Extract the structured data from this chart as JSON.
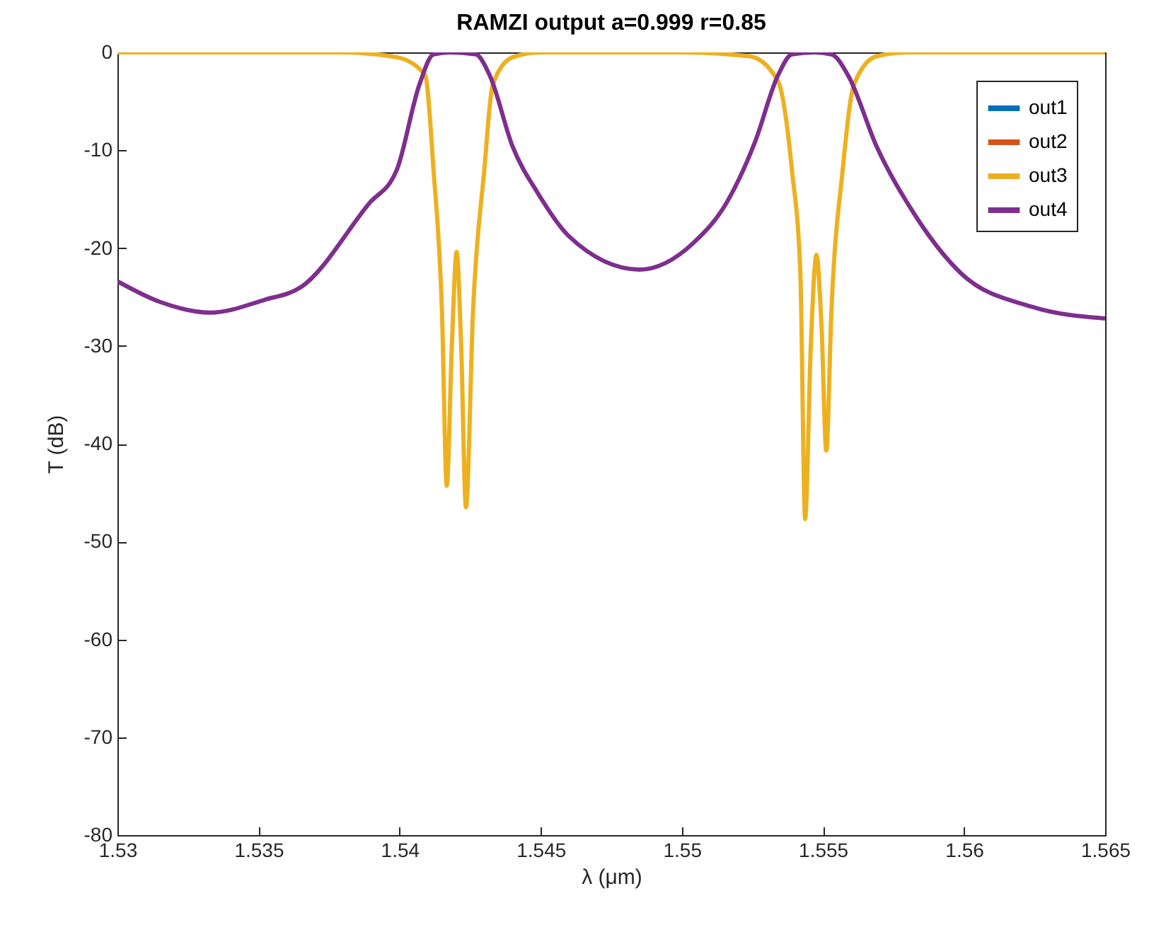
{
  "chart_data": {
    "type": "line",
    "title": "RAMZI output a=0.999 r=0.85",
    "xlabel": "λ (μm)",
    "ylabel": "T (dB)",
    "xlim": [
      1.53,
      1.565
    ],
    "xticks": [
      1.53,
      1.535,
      1.54,
      1.545,
      1.55,
      1.555,
      1.56,
      1.565
    ],
    "ylim": [
      -80,
      0
    ],
    "yticks": [
      -80,
      -70,
      -60,
      -50,
      -40,
      -30,
      -20,
      -10,
      0
    ],
    "grid": false,
    "legend": "top right",
    "line_style": "solid",
    "marker": "none",
    "series": [
      {
        "name": "out1",
        "color": "#0072bd"
      },
      {
        "name": "out2",
        "color": "#d95319"
      },
      {
        "name": "out3",
        "color": "#edb120",
        "x": [
          1.53,
          1.538,
          1.5399,
          1.5409,
          1.5412,
          1.5415,
          1.54167,
          1.54185,
          1.54202,
          1.54218,
          1.54235,
          1.5426,
          1.543,
          1.5433,
          1.544,
          1.545,
          1.55,
          1.5524,
          1.5534,
          1.5539,
          1.5542,
          1.55437,
          1.55457,
          1.55477,
          1.55495,
          1.55512,
          1.5553,
          1.5557,
          1.5561,
          1.5569,
          1.558,
          1.565
        ],
        "values": [
          0,
          0,
          -0.5,
          -2.3,
          -12,
          -26.5,
          -44.3,
          -30,
          -20.4,
          -30,
          -46.5,
          -26.5,
          -12,
          -3.3,
          -0.5,
          0,
          0,
          -0.4,
          -2.9,
          -12,
          -22.6,
          -47.7,
          -30,
          -20.7,
          -28,
          -40.7,
          -26.5,
          -12,
          -3.3,
          -0.4,
          0,
          0
        ]
      },
      {
        "name": "out4",
        "color": "#7e2f8e",
        "x": [
          1.53,
          1.5315,
          1.5333,
          1.5352,
          1.5365,
          1.5389,
          1.5399,
          1.5407,
          1.5412,
          1.5418,
          1.5427,
          1.5432,
          1.544,
          1.5449,
          1.546,
          1.5485,
          1.5504,
          1.5516,
          1.5526,
          1.5534,
          1.5539,
          1.5547,
          1.5553,
          1.5559,
          1.5569,
          1.5583,
          1.5599,
          1.5624,
          1.565
        ],
        "values": [
          -23.4,
          -25.5,
          -26.6,
          -25.3,
          -24,
          -15.5,
          -12,
          -3.3,
          -0.2,
          0,
          -0.2,
          -2.4,
          -9.6,
          -14.4,
          -18.8,
          -22.2,
          -19.5,
          -15.3,
          -9.1,
          -2.4,
          -0.2,
          0,
          -0.2,
          -2.4,
          -9.6,
          -16.8,
          -22.6,
          -26,
          -27.2
        ]
      }
    ]
  }
}
